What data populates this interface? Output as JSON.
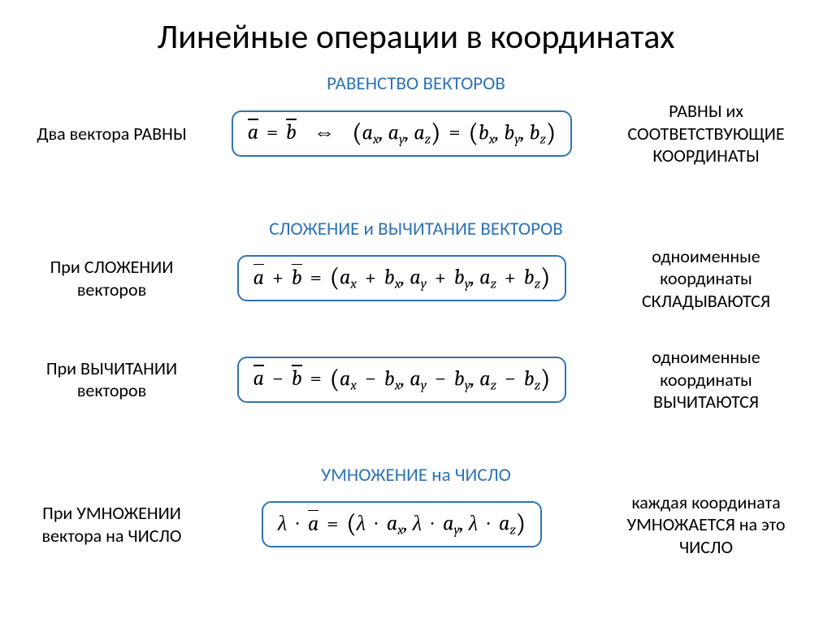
{
  "title": "Линейные операции в координатах",
  "sections": {
    "equality": {
      "heading": "РАВЕНСТВО ВЕКТОРОВ",
      "left": "Два вектора РАВНЫ",
      "right": "РАВНЫ их СООТВЕТСТВУЮЩИЕ КООРДИНАТЫ"
    },
    "addsub": {
      "heading": "СЛОЖЕНИЕ и ВЫЧИТАНИЕ ВЕКТОРОВ",
      "add_left": "При СЛОЖЕНИИ векторов",
      "add_right": "одноименные координаты СКЛАДЫВАЮТСЯ",
      "sub_left": "При ВЫЧИТАНИИ векторов",
      "sub_right": "одноименные координаты ВЫЧИТАЮТСЯ"
    },
    "scalar": {
      "heading": "УМНОЖЕНИЕ на ЧИСЛО",
      "left": "При УМНОЖЕНИИ вектора на ЧИСЛО",
      "right": "каждая координата УМНОЖАЕТСЯ на это ЧИСЛО"
    }
  },
  "symbols": {
    "a": "a",
    "b": "b",
    "lambda": "λ",
    "x": "x",
    "y": "y",
    "z": "z",
    "eq": "=",
    "iff": "⇔",
    "plus": "+",
    "minus": "−",
    "dot": "∙"
  },
  "style": {
    "border_color": "#2e74b5",
    "heading_color": "#2e74b5",
    "background_color": "#ffffff",
    "title_fontsize": 42,
    "heading_fontsize": 23,
    "side_fontsize": 22,
    "formula_fontsize": 26,
    "border_radius": 12,
    "border_width": 2.5
  }
}
